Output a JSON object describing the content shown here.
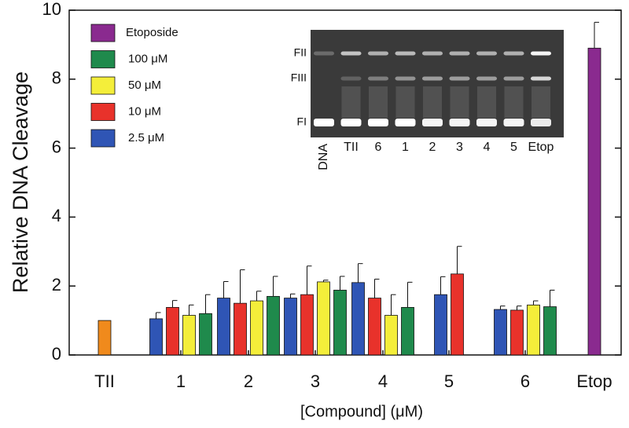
{
  "chart_data": {
    "type": "bar",
    "y_label": "Relative DNA Cleavage",
    "x_label": "[Compound]  (μM)",
    "categories": [
      "TII",
      "1",
      "2",
      "3",
      "4",
      "5",
      "6",
      "Etop"
    ],
    "ylim": [
      0,
      10
    ],
    "yticks": [
      0,
      2,
      4,
      6,
      8,
      10
    ],
    "series": [
      {
        "name": "2.5 μM",
        "color": "#2f55b5",
        "values": [
          null,
          1.05,
          1.65,
          1.65,
          2.1,
          1.75,
          1.32,
          null
        ],
        "errors": [
          null,
          0.18,
          0.48,
          0.12,
          0.55,
          0.52,
          0.1,
          null
        ]
      },
      {
        "name": "10 μM",
        "color": "#e8322b",
        "values": [
          null,
          1.38,
          1.5,
          1.75,
          1.65,
          2.35,
          1.3,
          null
        ],
        "errors": [
          null,
          0.2,
          0.97,
          0.83,
          0.55,
          0.8,
          0.12,
          null
        ]
      },
      {
        "name": "50 μM",
        "color": "#f4ee3a",
        "values": [
          null,
          1.15,
          1.57,
          2.12,
          1.15,
          null,
          1.45,
          null
        ],
        "errors": [
          null,
          0.3,
          0.28,
          0.05,
          0.6,
          null,
          0.12,
          null
        ]
      },
      {
        "name": "100 μM",
        "color": "#1f8a4c",
        "values": [
          null,
          1.2,
          1.7,
          1.88,
          1.38,
          null,
          1.4,
          null
        ],
        "errors": [
          null,
          0.55,
          0.58,
          0.4,
          0.73,
          null,
          0.48,
          null
        ]
      },
      {
        "name": "Etoposide",
        "color": "#8a2a8f",
        "values": [
          null,
          null,
          null,
          null,
          null,
          null,
          null,
          8.9
        ],
        "errors": [
          null,
          null,
          null,
          null,
          null,
          null,
          null,
          0.75
        ]
      },
      {
        "color": "#f08a1c",
        "values": [
          1.0,
          null,
          null,
          null,
          null,
          null,
          null,
          null
        ]
      }
    ]
  },
  "inset": {
    "band_labels": [
      "FII",
      "FIII",
      "FI"
    ],
    "lane_labels": [
      "DNA",
      "TII",
      "6",
      "1",
      "2",
      "3",
      "4",
      "5",
      "Etop"
    ]
  }
}
